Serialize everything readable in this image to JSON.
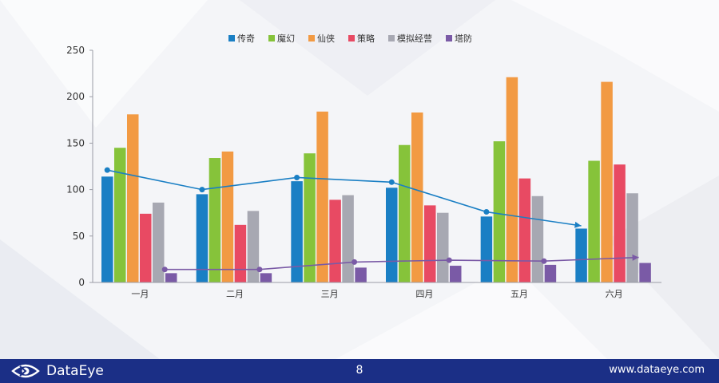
{
  "chart_data": {
    "type": "bar",
    "categories": [
      "一月",
      "二月",
      "三月",
      "四月",
      "五月",
      "六月"
    ],
    "series": [
      {
        "name": "传奇",
        "values": [
          114,
          95,
          109,
          102,
          71,
          58
        ],
        "color": "#1a7fc4"
      },
      {
        "name": "魔幻",
        "values": [
          145,
          134,
          139,
          148,
          152,
          131
        ],
        "color": "#86c33a"
      },
      {
        "name": "仙侠",
        "values": [
          181,
          141,
          184,
          183,
          221,
          216
        ],
        "color": "#f29a43"
      },
      {
        "name": "策略",
        "values": [
          74,
          62,
          89,
          83,
          112,
          127
        ],
        "color": "#e84a63"
      },
      {
        "name": "模拟经营",
        "values": [
          86,
          77,
          94,
          75,
          93,
          96
        ],
        "color": "#a7a8b2"
      },
      {
        "name": "塔防",
        "values": [
          10,
          10,
          16,
          18,
          19,
          21
        ],
        "color": "#7a5aa6"
      }
    ],
    "trend_lines": [
      {
        "series": "传奇",
        "values": [
          121,
          100,
          113,
          108,
          76,
          61
        ],
        "color": "#1a7fc4"
      },
      {
        "series": "塔防",
        "values": [
          14,
          14,
          22,
          24,
          23,
          27
        ],
        "color": "#7a5aa6"
      }
    ],
    "ylim": [
      0,
      250
    ],
    "yticks": [
      0,
      50,
      100,
      150,
      200,
      250
    ],
    "legend_position": "top-center",
    "grid": false
  },
  "footer": {
    "brand": "DataEye",
    "page": "8",
    "website": "www.dataeye.com",
    "logo_icon": "eye-icon",
    "background": "#1b2f86"
  }
}
